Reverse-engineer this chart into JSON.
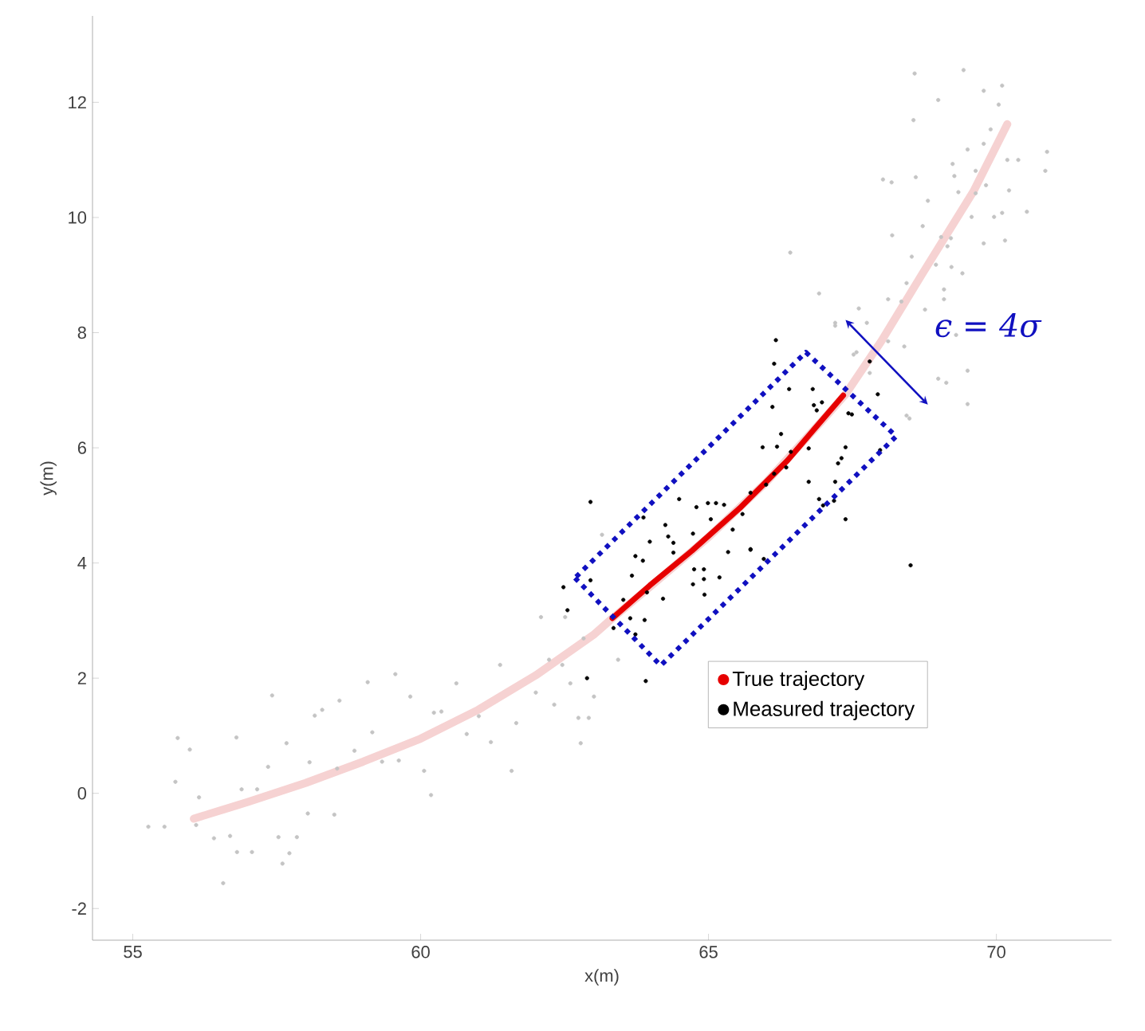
{
  "chart_data": {
    "type": "scatter",
    "xlabel": "x(m)",
    "ylabel": "y(m)",
    "xlim": [
      54.3,
      72
    ],
    "ylim": [
      -2.55,
      13.5
    ],
    "xticks": [
      55,
      60,
      65,
      70
    ],
    "yticks": [
      -2,
      0,
      2,
      4,
      6,
      8,
      10,
      12
    ],
    "legend": "bottom right",
    "annotations": [
      "ϵ = 4σ"
    ],
    "series": [
      {
        "type": "line",
        "color": "#f6d2d2",
        "line_style": "solid",
        "marker": "none",
        "x": [
          56.06,
          57.0,
          58.0,
          59.0,
          60.0,
          61.0,
          62.0,
          63.0,
          63.33,
          64.0,
          65.0,
          66.0,
          67.0,
          67.38,
          68.0,
          68.7,
          69.6,
          70.19
        ],
        "values": [
          -0.44,
          -0.15,
          0.18,
          0.55,
          0.95,
          1.45,
          2.05,
          2.75,
          3.04,
          3.6,
          4.45,
          5.4,
          6.5,
          6.93,
          7.85,
          9.0,
          10.45,
          11.62
        ]
      },
      {
        "color": "#c4c4c4",
        "marker": "circle",
        "x": [
          55.27,
          55.55,
          55.74,
          55.78,
          55.99,
          56.1,
          56.15,
          56.41,
          56.57,
          56.69,
          56.8,
          56.81,
          56.89,
          57.07,
          57.16,
          57.35,
          57.42,
          57.53,
          57.6,
          57.67,
          57.72,
          57.85,
          58.04,
          58.07,
          58.16,
          58.29,
          58.5,
          58.55,
          58.59,
          58.85,
          59.08,
          59.16,
          59.33,
          59.56,
          59.62,
          59.82,
          60.06,
          60.18,
          60.23,
          60.36,
          60.62,
          60.8,
          61.01,
          61.22,
          61.38,
          61.58,
          61.66,
          62.0,
          62.09,
          62.23,
          62.32,
          62.46,
          62.51,
          62.6,
          62.74,
          62.78,
          62.83,
          62.92,
          63.01,
          63.15,
          63.43,
          67.2,
          67.57,
          67.8,
          68.49,
          68.58,
          69.43,
          69.78,
          70.1,
          70.04,
          68.99,
          68.56,
          69.9,
          69.78,
          69.5,
          70.88,
          70.19,
          70.38,
          69.24,
          70.85,
          68.03,
          68.18,
          68.6,
          69.27,
          69.64,
          70.22,
          69.82,
          69.34,
          68.81,
          69.64,
          69.57,
          69.96,
          70.1,
          70.53,
          68.72,
          68.19,
          69.04,
          69.21,
          69.15,
          69.78,
          70.15,
          66.42,
          68.53,
          68.95,
          69.22,
          69.41,
          68.44,
          69.09,
          66.92,
          68.12,
          68.35,
          69.09,
          67.61,
          68.76,
          67.2,
          67.52,
          67.75,
          69.3,
          69.5,
          68.99,
          69.13,
          69.5,
          68.44,
          68.12,
          68.4
        ],
        "values": [
          -0.58,
          -0.58,
          0.2,
          0.96,
          0.76,
          -0.55,
          -0.07,
          -0.78,
          -1.56,
          -0.74,
          0.97,
          -1.02,
          0.07,
          -1.02,
          0.07,
          0.46,
          1.7,
          -0.76,
          -1.22,
          0.87,
          -1.04,
          -0.76,
          -0.35,
          0.54,
          1.35,
          1.45,
          -0.37,
          0.43,
          1.61,
          0.74,
          1.93,
          1.06,
          0.55,
          2.07,
          0.57,
          1.68,
          0.39,
          -0.03,
          1.4,
          1.42,
          1.91,
          1.03,
          1.34,
          0.89,
          2.23,
          0.39,
          1.22,
          1.75,
          3.06,
          2.32,
          1.54,
          2.23,
          3.06,
          1.91,
          1.31,
          0.87,
          2.69,
          1.31,
          1.68,
          4.49,
          2.32,
          8.12,
          7.66,
          7.3,
          6.51,
          12.5,
          12.56,
          12.2,
          12.29,
          11.96,
          12.04,
          11.69,
          11.53,
          11.28,
          11.18,
          11.14,
          11.0,
          11.0,
          10.93,
          10.81,
          10.66,
          10.61,
          10.7,
          10.72,
          10.81,
          10.47,
          10.56,
          10.44,
          10.29,
          10.42,
          10.01,
          10.01,
          10.08,
          10.1,
          9.85,
          9.69,
          9.66,
          9.64,
          9.5,
          9.55,
          9.6,
          9.39,
          9.32,
          9.18,
          9.14,
          9.03,
          8.86,
          8.75,
          8.68,
          8.58,
          8.54,
          8.58,
          8.42,
          8.4,
          8.17,
          7.62,
          8.17,
          7.96,
          7.34,
          7.2,
          7.13,
          6.76,
          6.56,
          7.85,
          7.76
        ]
      },
      {
        "type": "line",
        "name": "True trajectory",
        "color": "#e60000",
        "line_style": "solid",
        "marker": "none",
        "x": [
          63.33,
          63.98,
          64.71,
          65.54,
          66.37,
          67.34
        ],
        "values": [
          3.04,
          3.61,
          4.21,
          4.95,
          5.78,
          6.91
        ]
      },
      {
        "name": "Measured trajectory",
        "color": "#000000",
        "marker": "circle",
        "x": [
          62.95,
          62.48,
          62.55,
          62.95,
          62.89,
          63.91,
          63.35,
          63.52,
          63.64,
          63.73,
          63.89,
          63.67,
          63.73,
          63.86,
          63.87,
          63.98,
          63.93,
          64.21,
          64.25,
          64.3,
          64.39,
          64.39,
          64.49,
          64.73,
          64.75,
          64.73,
          64.79,
          64.92,
          64.92,
          64.93,
          64.99,
          65.04,
          65.13,
          65.19,
          65.27,
          65.34,
          65.42,
          65.73,
          65.59,
          65.73,
          66.17,
          66.14,
          66.4,
          66.11,
          66.26,
          66.19,
          66.43,
          66.35,
          66.14,
          66.0,
          66.74,
          66.81,
          66.83,
          66.97,
          66.88,
          66.74,
          66.92,
          66.99,
          67.18,
          67.2,
          67.25,
          67.31,
          67.38,
          67.38,
          67.43,
          67.49,
          67.94,
          67.98,
          68.51,
          65.96,
          65.73,
          65.94,
          67.8
        ],
        "values": [
          5.06,
          3.58,
          3.18,
          3.7,
          2.0,
          1.95,
          2.87,
          3.36,
          3.04,
          2.76,
          3.01,
          3.78,
          4.12,
          4.04,
          4.79,
          4.37,
          3.49,
          3.38,
          4.66,
          4.46,
          4.35,
          4.18,
          5.11,
          4.51,
          3.89,
          3.63,
          4.97,
          3.89,
          3.72,
          3.45,
          5.04,
          4.76,
          5.04,
          3.75,
          5.01,
          4.19,
          4.58,
          4.23,
          4.85,
          5.22,
          7.87,
          7.46,
          7.02,
          6.71,
          6.24,
          6.02,
          5.93,
          5.66,
          5.55,
          5.36,
          5.99,
          7.02,
          6.74,
          6.79,
          6.65,
          5.41,
          5.11,
          5.0,
          5.08,
          5.41,
          5.73,
          5.82,
          6.01,
          4.76,
          6.6,
          6.58,
          6.93,
          5.96,
          3.96,
          4.07,
          4.24,
          6.01,
          7.5
        ]
      }
    ]
  }
}
